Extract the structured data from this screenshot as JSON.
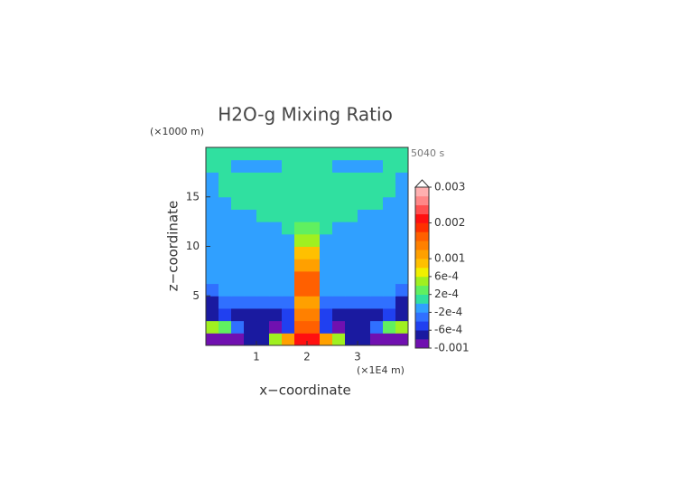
{
  "chart_data": {
    "type": "contour",
    "title": "H2O-g Mixing Ratio",
    "xlabel": "x−coordinate",
    "ylabel": "z−coordinate",
    "x_unit": "(×1E4 m)",
    "y_unit": "(×1000 m)",
    "time_label": "5040 s",
    "xlim": [
      0,
      4
    ],
    "ylim": [
      0,
      20
    ],
    "xticks": [
      1,
      2,
      3
    ],
    "yticks": [
      5,
      10,
      15
    ],
    "x": [
      0,
      0.25,
      0.5,
      0.75,
      1,
      1.25,
      1.5,
      1.75,
      2,
      2.25,
      2.5,
      2.75,
      3,
      3.25,
      3.5,
      3.75,
      4
    ],
    "y": [
      0,
      1.25,
      2.5,
      3.75,
      5,
      6.25,
      7.5,
      8.75,
      10,
      11.25,
      12.5,
      13.75,
      15,
      16.25,
      17.5,
      18.75,
      20
    ],
    "z": [
      [
        -0.0009,
        -0.0009,
        -0.0009,
        -0.0007,
        -0.0007,
        0.0005,
        0.0012,
        0.0021,
        0.0021,
        0.0012,
        0.0005,
        -0.0007,
        -0.0007,
        -0.0009,
        -0.0009,
        -0.0009
      ],
      [
        0.0005,
        0.0003,
        -0.0003,
        -0.0007,
        -0.0007,
        -0.0009,
        -0.0005,
        0.0015,
        0.0015,
        -0.0005,
        -0.0009,
        -0.0007,
        -0.0007,
        -0.0003,
        0.0003,
        0.0005
      ],
      [
        -0.0007,
        -0.0005,
        -0.0007,
        -0.0007,
        -0.0007,
        -0.0007,
        -0.0005,
        0.0013,
        0.0013,
        -0.0005,
        -0.0007,
        -0.0007,
        -0.0007,
        -0.0007,
        -0.0005,
        -0.0007
      ],
      [
        -0.0007,
        -0.0003,
        -0.0003,
        -0.0003,
        -0.0003,
        -0.0003,
        -0.0003,
        0.0011,
        0.0011,
        -0.0003,
        -0.0003,
        -0.0003,
        -0.0003,
        -0.0003,
        -0.0003,
        -0.0007
      ],
      [
        -0.0003,
        -0.0001,
        -0.0001,
        -0.0001,
        -0.0001,
        -0.0001,
        -0.0001,
        0.0017,
        0.0017,
        -0.0001,
        -0.0001,
        -0.0001,
        -0.0001,
        -0.0001,
        -0.0001,
        -0.0003
      ],
      [
        -0.0001,
        -0.0001,
        -0.0001,
        -0.0001,
        -0.0001,
        -0.0001,
        -0.0001,
        0.0017,
        0.0017,
        -0.0001,
        -0.0001,
        -0.0001,
        -0.0001,
        -0.0001,
        -0.0001,
        -0.0001
      ],
      [
        -0.0001,
        -0.0001,
        -0.0001,
        -0.0001,
        -0.0001,
        -0.0001,
        -0.0001,
        0.0011,
        0.0011,
        -0.0001,
        -0.0001,
        -0.0001,
        -0.0001,
        -0.0001,
        -0.0001,
        -0.0001
      ],
      [
        -0.0001,
        -0.0001,
        -0.0001,
        -0.0001,
        -0.0001,
        -0.0001,
        -0.0001,
        0.0009,
        0.0009,
        -0.0001,
        -0.0001,
        -0.0001,
        -0.0001,
        -0.0001,
        -0.0001,
        -0.0001
      ],
      [
        -0.0001,
        -0.0001,
        -0.0001,
        -0.0001,
        -0.0001,
        -0.0001,
        -0.0001,
        0.0005,
        0.0005,
        -0.0001,
        -0.0001,
        -0.0001,
        -0.0001,
        -0.0001,
        -0.0001,
        -0.0001
      ],
      [
        -0.0001,
        -0.0001,
        -0.0001,
        -0.0001,
        -0.0001,
        -0.0001,
        0.0001,
        0.0003,
        0.0003,
        0.0001,
        -0.0001,
        -0.0001,
        -0.0001,
        -0.0001,
        -0.0001,
        -0.0001
      ],
      [
        -0.0001,
        -0.0001,
        -0.0001,
        -0.0001,
        0.0001,
        0.0001,
        0.0001,
        0.0001,
        0.0001,
        0.0001,
        0.0001,
        0.0001,
        -0.0001,
        -0.0001,
        -0.0001,
        -0.0001
      ],
      [
        -0.0001,
        -0.0001,
        0.0001,
        0.0001,
        0.0001,
        0.0001,
        0.0001,
        0.0001,
        0.0001,
        0.0001,
        0.0001,
        0.0001,
        0.0001,
        0.0001,
        -0.0001,
        -0.0001
      ],
      [
        -0.0001,
        0.0001,
        0.0001,
        0.0001,
        0.0001,
        0.0001,
        0.0001,
        0.0001,
        0.0001,
        0.0001,
        0.0001,
        0.0001,
        0.0001,
        0.0001,
        0.0001,
        -0.0001
      ],
      [
        -0.0001,
        0.0001,
        0.0001,
        0.0001,
        0.0001,
        0.0001,
        0.0001,
        0.0001,
        0.0001,
        0.0001,
        0.0001,
        0.0001,
        0.0001,
        0.0001,
        0.0001,
        -0.0001
      ],
      [
        0.0001,
        0.0001,
        -0.0001,
        -0.0001,
        -0.0001,
        -0.0001,
        0.0001,
        0.0001,
        0.0001,
        0.0001,
        -0.0001,
        -0.0001,
        -0.0001,
        -0.0001,
        0.0001,
        0.0001
      ],
      [
        0.0001,
        0.0001,
        0.0001,
        0.0001,
        0.0001,
        0.0001,
        0.0001,
        0.0001,
        0.0001,
        0.0001,
        0.0001,
        0.0001,
        0.0001,
        0.0001,
        0.0001,
        0.0001
      ]
    ],
    "colorbar": {
      "levels": [
        -0.001,
        -0.0008,
        -0.0006,
        -0.0004,
        -0.0002,
        0,
        0.0002,
        0.0004,
        0.0006,
        0.0008,
        0.001,
        0.00125,
        0.0015,
        0.00175,
        0.002,
        0.00225,
        0.0025,
        0.00275,
        0.003
      ],
      "colors": [
        "#7010b0",
        "#1a1aa0",
        "#2040f0",
        "#3070ff",
        "#30a0ff",
        "#30e0a0",
        "#60f060",
        "#a0f020",
        "#f0f000",
        "#ffc000",
        "#ffa000",
        "#ff8000",
        "#ff6000",
        "#ff3000",
        "#ff1010",
        "#ff5050",
        "#ff8888",
        "#ffb0b0"
      ],
      "ticks": [
        0.003,
        0.002,
        0.001,
        {
          "value": 0.0006,
          "label": "6e-4"
        },
        {
          "value": 0.0002,
          "label": "2e-4"
        },
        {
          "value": -0.0002,
          "label": "-2e-4"
        },
        {
          "value": -0.0006,
          "label": "-6e-4"
        },
        -0.001
      ]
    }
  }
}
